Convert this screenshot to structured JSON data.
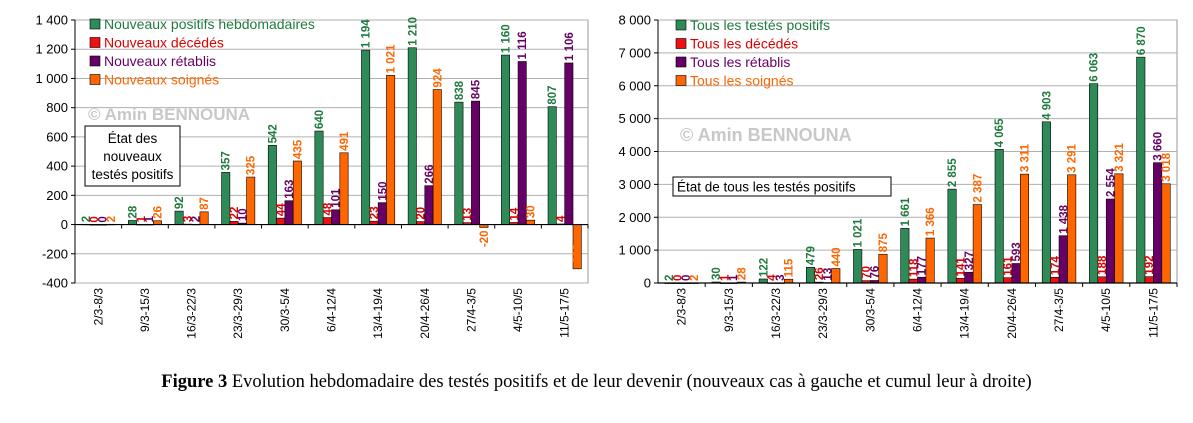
{
  "caption": {
    "label": "Figure 3",
    "text": "Evolution hebdomadaire des testés positifs et de leur devenir (nouveaux cas à gauche et cumul leur à droite)"
  },
  "colors": {
    "positifs": "#2e8b57",
    "decedes": "#ee1111",
    "retablis": "#660066",
    "soignes": "#ff6600"
  },
  "chart_data": [
    {
      "type": "bar",
      "title": "",
      "annotation_box": "État des nouveaux testés positifs",
      "watermark": "© Amin BENNOUNA",
      "xlabel": "",
      "ylabel": "",
      "ylim": [
        -400,
        1400
      ],
      "yticks": [
        -400,
        -200,
        0,
        200,
        400,
        600,
        800,
        1000,
        1200,
        1400
      ],
      "ytick_labels": [
        "-400",
        "-200",
        "0",
        "200",
        "400",
        "600",
        "800",
        "1 000",
        "1 200",
        "1 400"
      ],
      "grid": true,
      "legend_position": "top-left",
      "categories": [
        "2/3-8/3",
        "9/3-15/3",
        "16/3-22/3",
        "23/3-29/3",
        "30/3-5/4",
        "6/4-12/4",
        "13/4-19/4",
        "20/4-26/4",
        "27/4-3/5",
        "4/5-10/5",
        "11/5-17/5"
      ],
      "series": [
        {
          "name": "Nouveaux positifs hebdomadaires",
          "color": "#2e8b57",
          "label_color": "#1f7a3e",
          "values": [
            2,
            28,
            92,
            357,
            542,
            640,
            1194,
            1210,
            838,
            1160,
            807
          ],
          "labels": [
            "2",
            "28",
            "92",
            "357",
            "542",
            "640",
            "1 194",
            "1 210",
            "838",
            "1 160",
            "807"
          ]
        },
        {
          "name": "Nouveaux décédés",
          "color": "#ee1111",
          "label_color": "#dd0000",
          "values": [
            0,
            1,
            3,
            22,
            44,
            48,
            23,
            20,
            13,
            14,
            4
          ],
          "labels": [
            "0",
            "1",
            "3",
            "22",
            "44",
            "48",
            "23",
            "20",
            "13",
            "14",
            "4"
          ]
        },
        {
          "name": "Nouveaux rétablis",
          "color": "#660066",
          "label_color": "#660066",
          "values": [
            0,
            1,
            2,
            10,
            163,
            101,
            150,
            266,
            845,
            1116,
            1106
          ],
          "labels": [
            "0",
            "1",
            "2",
            "10",
            "163",
            "101",
            "150",
            "266",
            "845",
            "1 116",
            "1 106"
          ]
        },
        {
          "name": "Nouveaux soignés",
          "color": "#ff6600",
          "label_color": "#ff6600",
          "values": [
            2,
            26,
            87,
            325,
            435,
            491,
            1021,
            924,
            -20,
            30,
            -303
          ],
          "labels": [
            "2",
            "26",
            "87",
            "325",
            "435",
            "491",
            "1 021",
            "924",
            "-20",
            "30",
            "-303"
          ]
        }
      ]
    },
    {
      "type": "bar",
      "title": "",
      "annotation_box": "État de tous les testés positifs",
      "watermark": "© Amin BENNOUNA",
      "xlabel": "",
      "ylabel": "",
      "ylim": [
        0,
        8000
      ],
      "yticks": [
        0,
        1000,
        2000,
        3000,
        4000,
        5000,
        6000,
        7000,
        8000
      ],
      "ytick_labels": [
        "0",
        "1 000",
        "2 000",
        "3 000",
        "4 000",
        "5 000",
        "6 000",
        "7 000",
        "8 000"
      ],
      "grid": true,
      "legend_position": "top-left",
      "categories": [
        "2/3-8/3",
        "9/3-15/3",
        "16/3-22/3",
        "23/3-29/3",
        "30/3-5/4",
        "6/4-12/4",
        "13/4-19/4",
        "20/4-26/4",
        "27/4-3/5",
        "4/5-10/5",
        "11/5-17/5"
      ],
      "series": [
        {
          "name": "Tous les testés positifs",
          "color": "#2e8b57",
          "label_color": "#1f7a3e",
          "values": [
            2,
            30,
            122,
            479,
            1021,
            1661,
            2855,
            4065,
            4903,
            6063,
            6870
          ],
          "labels": [
            "2",
            "30",
            "122",
            "479",
            "1 021",
            "1 661",
            "2 855",
            "4 065",
            "4 903",
            "6 063",
            "6 870"
          ]
        },
        {
          "name": "Tous les décédés",
          "color": "#ee1111",
          "label_color": "#dd0000",
          "values": [
            0,
            1,
            4,
            26,
            70,
            118,
            141,
            161,
            174,
            188,
            192
          ],
          "labels": [
            "0",
            "1",
            "4",
            "26",
            "70",
            "118",
            "141",
            "161",
            "174",
            "188",
            "192"
          ]
        },
        {
          "name": "Tous les rétablis",
          "color": "#660066",
          "label_color": "#660066",
          "values": [
            0,
            1,
            3,
            13,
            76,
            177,
            327,
            593,
            1438,
            2554,
            3660
          ],
          "labels": [
            "0",
            "1",
            "3",
            "13",
            "76",
            "177",
            "327",
            "593",
            "1 438",
            "2 554",
            "3 660"
          ]
        },
        {
          "name": "Tous les soignés",
          "color": "#ff6600",
          "label_color": "#ff6600",
          "values": [
            2,
            28,
            115,
            440,
            875,
            1366,
            2387,
            3311,
            3291,
            3321,
            3018
          ],
          "labels": [
            "2",
            "28",
            "115",
            "440",
            "875",
            "1 366",
            "2 387",
            "3 311",
            "3 291",
            "3 321",
            "3 018"
          ]
        }
      ]
    }
  ]
}
